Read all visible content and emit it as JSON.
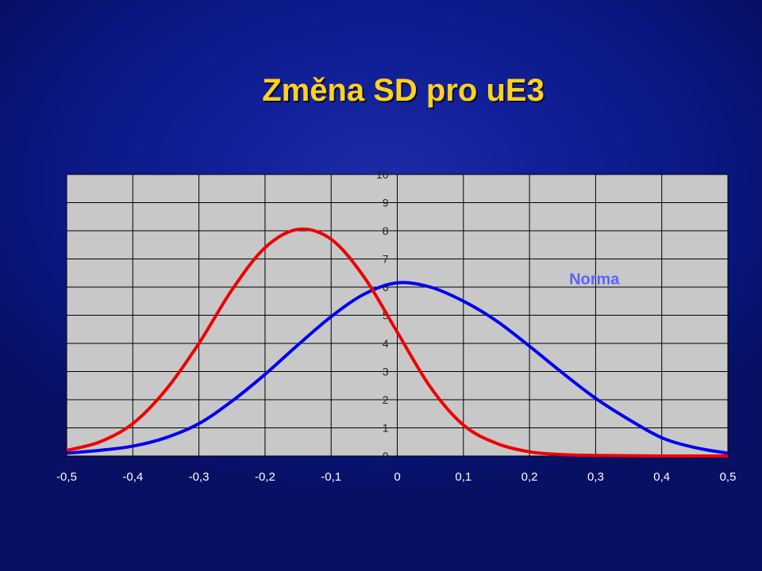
{
  "slide": {
    "title": "Změna SD  pro uE3"
  },
  "chart_data": {
    "type": "line",
    "title": "",
    "xlabel": "",
    "ylabel": "",
    "xlim": [
      -0.5,
      0.5
    ],
    "ylim": [
      0,
      10
    ],
    "x_ticks": [
      -0.5,
      -0.4,
      -0.3,
      -0.2,
      -0.1,
      0,
      0.1,
      0.2,
      0.3,
      0.4,
      0.5
    ],
    "x_tick_labels": [
      "-0,5",
      "-0,4",
      "-0,3",
      "-0,2",
      "-0,1",
      "0",
      "0,1",
      "0,2",
      "0,3",
      "0,4",
      "0,5"
    ],
    "y_ticks": [
      0,
      1,
      2,
      3,
      4,
      5,
      6,
      7,
      8,
      9,
      10
    ],
    "y_tick_labels": [
      "0",
      "1",
      "2",
      "3",
      "4",
      "5",
      "6",
      "7",
      "8",
      "9",
      "10"
    ],
    "grid": true,
    "annotations": [
      {
        "text": "Norma",
        "x": 0.26,
        "y": 6.1,
        "color": "#5a63ff"
      }
    ],
    "series": [
      {
        "color": "#0000ee",
        "x": [
          -0.5,
          -0.45,
          -0.4,
          -0.35,
          -0.3,
          -0.25,
          -0.2,
          -0.15,
          -0.1,
          -0.05,
          0,
          0.05,
          0.1,
          0.15,
          0.2,
          0.25,
          0.3,
          0.35,
          0.4,
          0.45,
          0.5
        ],
        "values": [
          0.1,
          0.2,
          0.35,
          0.65,
          1.15,
          1.95,
          2.9,
          3.95,
          4.95,
          5.75,
          6.15,
          6.0,
          5.5,
          4.8,
          3.9,
          2.95,
          2.05,
          1.3,
          0.65,
          0.3,
          0.1
        ]
      },
      {
        "color": "#ee0000",
        "x": [
          -0.5,
          -0.45,
          -0.4,
          -0.35,
          -0.3,
          -0.25,
          -0.2,
          -0.15,
          -0.1,
          -0.05,
          0,
          0.05,
          0.1,
          0.15,
          0.2,
          0.25,
          0.3,
          0.35,
          0.4,
          0.45,
          0.5
        ],
        "values": [
          0.2,
          0.5,
          1.15,
          2.35,
          4.0,
          5.9,
          7.4,
          8.05,
          7.7,
          6.35,
          4.4,
          2.45,
          1.1,
          0.45,
          0.15,
          0.05,
          0.02,
          0.01,
          0.0,
          0.0,
          0.0
        ]
      }
    ]
  }
}
